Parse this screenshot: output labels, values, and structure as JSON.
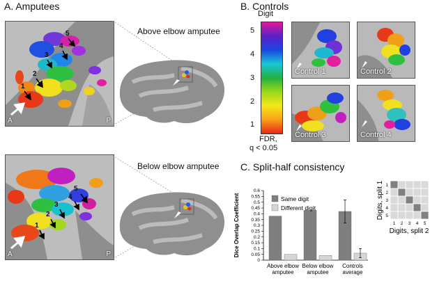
{
  "panels": {
    "a_title": "A. Amputees",
    "b_title": "B. Controls",
    "c_title": "C. Split-half consistency"
  },
  "amputees": {
    "above_label": "Above elbow amputee",
    "below_label": "Below elbow amputee",
    "corner_left": "A",
    "corner_right": "P",
    "above_digits": [
      "1",
      "2",
      "3",
      "4",
      "5"
    ],
    "below_digits": [
      "1",
      "2",
      "3",
      "4",
      "5"
    ]
  },
  "colorbar": {
    "title": "Digit",
    "ticks": [
      "5",
      "4",
      "3",
      "2",
      "1"
    ],
    "fdr_line1": "FDR,",
    "fdr_line2": "q < 0.05",
    "colors": [
      "#e0189a",
      "#5a20c8",
      "#1a46e0",
      "#18c8d8",
      "#20b040",
      "#9ad818",
      "#f4e818",
      "#f8a018",
      "#e82818"
    ]
  },
  "controls": [
    "Control 1",
    "Control 2",
    "Control 3",
    "Control 4"
  ],
  "chart_data": {
    "type": "bar",
    "ylabel": "Dice Overlap Coefficient",
    "ylim": [
      0,
      0.6
    ],
    "yticks": [
      "0",
      "0.05",
      "0.1",
      "0.15",
      "0.2",
      "0.25",
      "0.3",
      "0.35",
      "0.4",
      "0.45",
      "0.5",
      "0.55",
      "0.6"
    ],
    "categories": [
      [
        "Above elbow",
        "amputee"
      ],
      [
        "Below elbow",
        "amputee"
      ],
      [
        "Controls",
        "average"
      ]
    ],
    "series": [
      {
        "name": "Same digit",
        "values": [
          0.38,
          0.43,
          0.42
        ],
        "errors": [
          null,
          null,
          0.1
        ],
        "color": "#7f7f7f"
      },
      {
        "name": "Different digit",
        "values": [
          0.05,
          0.04,
          0.06
        ],
        "errors": [
          null,
          null,
          0.04
        ],
        "color": "#d6d6d6"
      }
    ]
  },
  "matrix": {
    "ylabel": "Digits, split 1",
    "xlabel": "Digits, split 2",
    "labels": [
      "1",
      "2",
      "3",
      "4",
      "5"
    ],
    "diag_color": "#808080",
    "off_color": "#d9d9d9"
  }
}
